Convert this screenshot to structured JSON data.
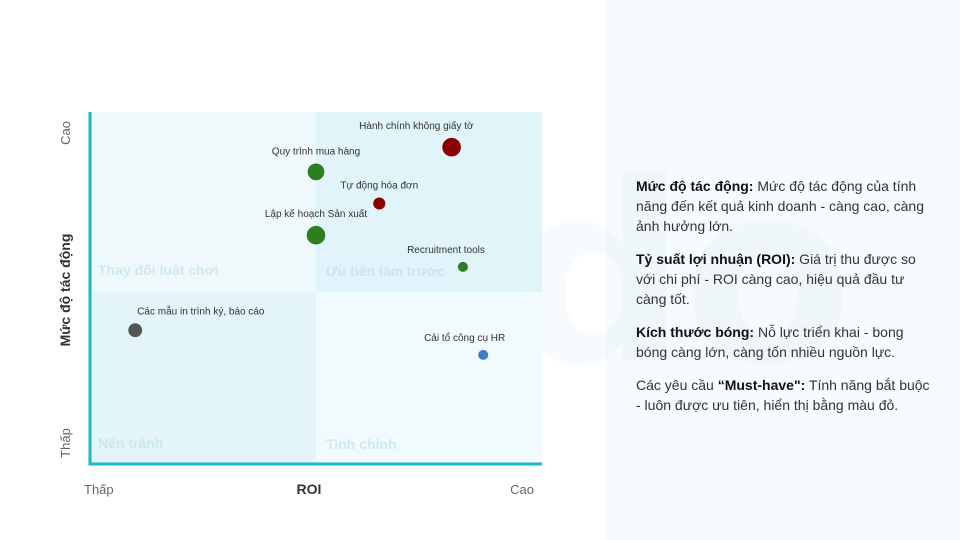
{
  "chart_data": {
    "type": "scatter",
    "xlabel": "ROI",
    "ylabel": "Mức độ tác động",
    "x_ticks": [
      "Thấp",
      "Cao"
    ],
    "y_ticks": [
      "Thấp",
      "Cao"
    ],
    "xlim": [
      0,
      10
    ],
    "ylim": [
      0,
      10
    ],
    "quadrants": [
      {
        "label": "Thay đổi luật chơi",
        "position": "top-left"
      },
      {
        "label": "Ưu tiên làm trước",
        "position": "top-right"
      },
      {
        "label": "Nên tránh",
        "position": "bottom-left"
      },
      {
        "label": "Tinh chỉnh",
        "position": "bottom-right"
      }
    ],
    "points": [
      {
        "label": "Hành chính không giấy tờ",
        "x": 8.0,
        "y": 9.0,
        "size": 3,
        "color": "#8b0000"
      },
      {
        "label": "Quy trình mua hàng",
        "x": 5.0,
        "y": 8.3,
        "size": 2.5,
        "color": "#2e7d1f"
      },
      {
        "label": "Tự động hóa đơn",
        "x": 6.4,
        "y": 7.4,
        "size": 1.4,
        "color": "#8b0000"
      },
      {
        "label": "Lập kế hoạch Sản xuất",
        "x": 5.0,
        "y": 6.5,
        "size": 3,
        "color": "#2e7d1f"
      },
      {
        "label": "Recruitment tools",
        "x": 8.25,
        "y": 5.6,
        "size": 1,
        "color": "#2e7d1f"
      },
      {
        "label": "Các mẫu in trình ký, báo cáo",
        "x": 1.0,
        "y": 3.8,
        "size": 1.8,
        "color": "#555555"
      },
      {
        "label": "Cải tổ công cụ HR",
        "x": 8.7,
        "y": 3.1,
        "size": 1,
        "color": "#3a7fc4"
      }
    ]
  },
  "watermark_text": "vindo",
  "legend": {
    "items": [
      {
        "term": "Mức độ tác động:",
        "desc": " Mức độ tác động của tính năng đến kết quả kinh doanh - càng cao, càng ảnh hưởng lớn."
      },
      {
        "term": "Tỷ suất lợi nhuận (ROI):",
        "desc": " Giá trị thu được so với chi phí - ROI càng cao, hiệu quả đầu tư càng tốt."
      },
      {
        "term": "Kích thước bóng:",
        "desc": " Nỗ lực triển khai - bong bóng càng lớn, càng tốn nhiều nguồn lực."
      }
    ],
    "must_have_prefix": "Các yêu cầu ",
    "must_have_term": "“Must-have\":",
    "must_have_desc": " Tính năng bắt buộc - luôn được ưu tiên, hiển thị bằng màu đỏ."
  }
}
